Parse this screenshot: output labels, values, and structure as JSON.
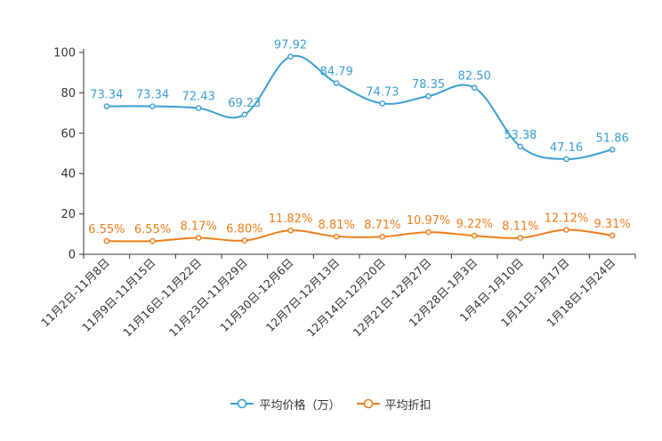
{
  "chart_data": {
    "type": "line",
    "categories": [
      "11月2日-11月8日",
      "11月9日-11月15日",
      "11月16日-11月22日",
      "11月23日-11月29日",
      "11月30日-12月6日",
      "12月7日-12月13日",
      "12月14日-12月20日",
      "12月21日-12月27日",
      "12月28日-1月3日",
      "1月4日-1月10日",
      "1月11日-1月17日",
      "1月18日-1月24日"
    ],
    "ylim": [
      0,
      100
    ],
    "yticks": [
      0,
      20,
      40,
      60,
      80,
      100
    ],
    "series": [
      {
        "name": "平均价格（万）",
        "color": "#3b9fd1",
        "values": [
          73.34,
          73.34,
          72.43,
          69.23,
          97.92,
          84.79,
          74.73,
          78.35,
          82.5,
          53.38,
          47.16,
          51.86
        ],
        "labels": [
          "73.34",
          "73.34",
          "72.43",
          "69.23",
          "97.92",
          "84.79",
          "74.73",
          "78.35",
          "82.50",
          "53.38",
          "47.16",
          "51.86"
        ]
      },
      {
        "name": "平均折扣",
        "color": "#f07d1a",
        "values": [
          6.55,
          6.55,
          8.17,
          6.8,
          11.82,
          8.81,
          8.71,
          10.97,
          9.22,
          8.11,
          12.12,
          9.31
        ],
        "labels": [
          "6.55%",
          "6.55%",
          "8.17%",
          "6.80%",
          "11.82%",
          "8.81%",
          "8.71%",
          "10.97%",
          "9.22%",
          "8.11%",
          "12.12%",
          "9.31%"
        ]
      }
    ],
    "legend_position": "bottom-center"
  }
}
